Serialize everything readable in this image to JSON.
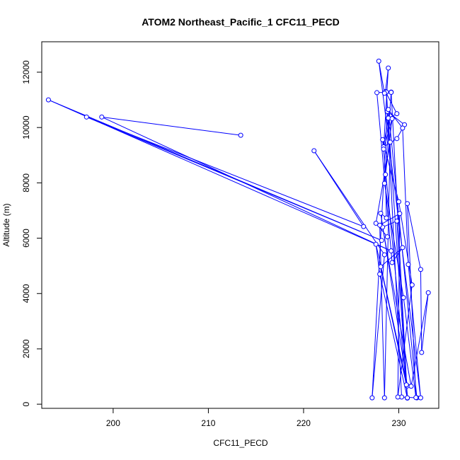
{
  "chart_data": {
    "type": "line",
    "title": "ATOM2 Northeast_Pacific_1 CFC11_PECD",
    "xlabel": "CFC11_PECD",
    "ylabel": "Altitude (m)",
    "xlim": [
      192.5,
      234.2
    ],
    "ylim": [
      -150,
      13100
    ],
    "xticks": [
      200,
      210,
      220,
      230
    ],
    "yticks": [
      0,
      2000,
      4000,
      6000,
      8000,
      10000,
      12000
    ],
    "xtick_labels": [
      "200",
      "210",
      "220",
      "230"
    ],
    "ytick_labels": [
      "0",
      "2000",
      "4000",
      "6000",
      "8000",
      "10000",
      "12000"
    ],
    "grid": false,
    "legend": "none",
    "line_color": "#0000ff",
    "marker": "open-circle",
    "series": [
      {
        "points": [
          [
            213.4,
            9720
          ],
          [
            198.8,
            10380
          ],
          [
            229.2,
            5540
          ],
          [
            193.2,
            11000
          ],
          [
            228.2,
            5920
          ],
          [
            197.2,
            10380
          ],
          [
            226.3,
            6420
          ],
          [
            221.1,
            9160
          ],
          [
            228.5,
            5400
          ],
          [
            227.2,
            230
          ],
          [
            228.8,
            10580
          ],
          [
            230.6,
            10100
          ],
          [
            229.8,
            9600
          ],
          [
            228.4,
            9300
          ],
          [
            228.9,
            10340
          ],
          [
            229.8,
            10500
          ],
          [
            228.6,
            11300
          ],
          [
            228.9,
            12150
          ],
          [
            228.4,
            9220
          ],
          [
            229.3,
            10320
          ],
          [
            228.6,
            8300
          ],
          [
            228.7,
            6730
          ],
          [
            228.1,
            6900
          ],
          [
            230.9,
            660
          ],
          [
            227.6,
            5780
          ],
          [
            228.0,
            4700
          ],
          [
            230.9,
            220
          ],
          [
            229.2,
            11280
          ],
          [
            227.7,
            11260
          ],
          [
            229.3,
            5120
          ],
          [
            230.4,
            5660
          ],
          [
            228.1,
            4970
          ],
          [
            230.8,
            700
          ],
          [
            228.7,
            11280
          ],
          [
            230.3,
            260
          ],
          [
            231.9,
            230
          ],
          [
            228.9,
            10650
          ],
          [
            230.4,
            9980
          ],
          [
            231.0,
            5050
          ],
          [
            232.3,
            230
          ],
          [
            227.9,
            12400
          ],
          [
            228.5,
            11240
          ],
          [
            229.2,
            11270
          ],
          [
            228.5,
            7980
          ],
          [
            230.5,
            3850
          ],
          [
            231.8,
            240
          ],
          [
            230.9,
            7250
          ],
          [
            232.3,
            4870
          ],
          [
            232.4,
            1870
          ],
          [
            233.1,
            4030
          ],
          [
            231.3,
            650
          ],
          [
            228.3,
            6400
          ],
          [
            229.8,
            6620
          ],
          [
            230.9,
            230
          ],
          [
            228.3,
            9560
          ],
          [
            230.0,
            7320
          ],
          [
            231.4,
            4310
          ],
          [
            229.9,
            260
          ],
          [
            230.1,
            6890
          ],
          [
            228.0,
            6470
          ],
          [
            228.5,
            230
          ],
          [
            229.1,
            9470
          ],
          [
            227.6,
            6540
          ],
          [
            228.8,
            6050
          ]
        ]
      }
    ]
  }
}
